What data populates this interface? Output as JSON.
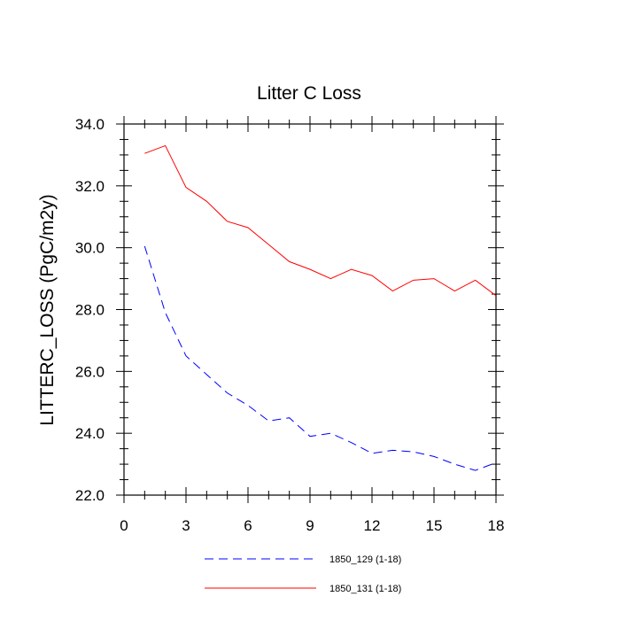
{
  "chart_data": {
    "type": "line",
    "title": "Litter C Loss",
    "ylabel": "LITTERC_LOSS  (PgC/m2y)",
    "xlabel": "",
    "xlim": [
      0,
      18
    ],
    "ylim": [
      22.0,
      34.0
    ],
    "x_ticks": [
      "0",
      "3",
      "6",
      "9",
      "12",
      "15",
      "18"
    ],
    "y_ticks": [
      "22.0",
      "24.0",
      "26.0",
      "28.0",
      "30.0",
      "32.0",
      "34.0"
    ],
    "grid": false,
    "legend_position": "bottom",
    "x": [
      1,
      2,
      3,
      4,
      5,
      6,
      7,
      8,
      9,
      10,
      11,
      12,
      13,
      14,
      15,
      16,
      17,
      18
    ],
    "series": [
      {
        "name": "1850_129 (1-18)",
        "color": "#0000ff",
        "style": "dashed",
        "values": [
          30.05,
          27.9,
          26.5,
          25.9,
          25.3,
          24.9,
          24.4,
          24.5,
          23.9,
          24.0,
          23.7,
          23.35,
          23.45,
          23.4,
          23.25,
          23.0,
          22.8,
          23.05
        ]
      },
      {
        "name": "1850_131 (1-18)",
        "color": "#ff0000",
        "style": "solid",
        "values": [
          33.05,
          33.3,
          31.95,
          31.5,
          30.85,
          30.65,
          30.1,
          29.55,
          29.3,
          29.0,
          29.3,
          29.1,
          28.6,
          28.95,
          29.0,
          28.6,
          28.95,
          28.45
        ]
      }
    ]
  }
}
